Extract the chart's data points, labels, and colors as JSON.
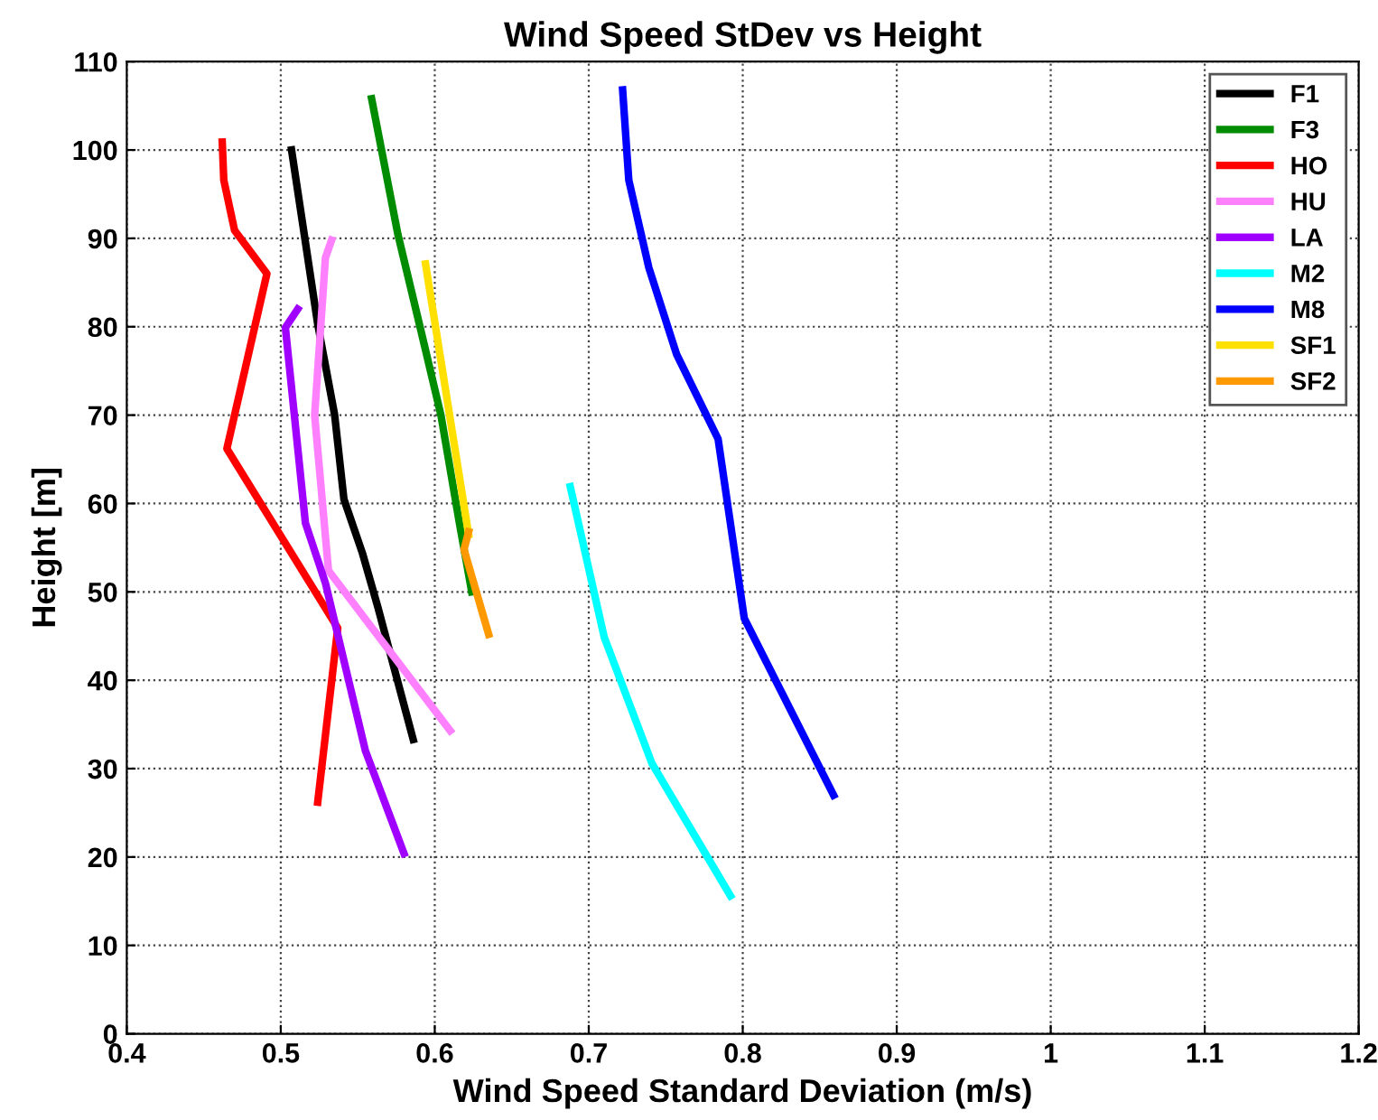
{
  "chart_data": {
    "type": "line",
    "title": "Wind Speed StDev vs Height",
    "xlabel": "Wind Speed Standard Deviation (m/s)",
    "ylabel": "Height [m]",
    "xlim": [
      0.4,
      1.2
    ],
    "xticks": [
      0.4,
      0.5,
      0.6,
      0.7,
      0.8,
      0.9,
      1,
      1.1,
      1.2
    ],
    "ylim": [
      0,
      110
    ],
    "yticks": [
      0,
      10,
      20,
      30,
      40,
      50,
      60,
      70,
      80,
      90,
      100,
      110
    ],
    "grid": true,
    "legend": "top right",
    "line_style": "solid",
    "marker": "none",
    "series": [
      {
        "name": "F1",
        "color": "#000000",
        "x": [
          0.507,
          0.524,
          0.535,
          0.541,
          0.553,
          0.563,
          0.586
        ],
        "values": [
          100,
          80.3,
          70,
          60.5,
          54.4,
          48.3,
          33.3
        ]
      },
      {
        "name": "F3",
        "color": "#008c00",
        "x": [
          0.559,
          0.576,
          0.59,
          0.604,
          0.616,
          0.624
        ],
        "values": [
          105.8,
          90.5,
          80.3,
          70,
          57.8,
          50
        ]
      },
      {
        "name": "HO",
        "color": "#ff0000",
        "x": [
          0.462,
          0.463,
          0.47,
          0.491,
          0.465,
          0.537,
          0.524
        ],
        "values": [
          100.9,
          96.6,
          90.9,
          86,
          66.2,
          45.9,
          26.2
        ]
      },
      {
        "name": "HU",
        "color": "#ff80ff",
        "x": [
          0.533,
          0.529,
          0.522,
          0.531,
          0.61
        ],
        "values": [
          89.8,
          87.8,
          70,
          52.4,
          34.3
        ]
      },
      {
        "name": "LA",
        "color": "#a000ff",
        "x": [
          0.511,
          0.503,
          0.516,
          0.529,
          0.555,
          0.58
        ],
        "values": [
          82,
          79.9,
          57.8,
          51,
          32,
          20.4
        ]
      },
      {
        "name": "M2",
        "color": "#00ffff",
        "x": [
          0.688,
          0.71,
          0.741,
          0.792
        ],
        "values": [
          61.9,
          44.9,
          30.6,
          15.6
        ]
      },
      {
        "name": "M8",
        "color": "#0000ff",
        "x": [
          0.722,
          0.726,
          0.739,
          0.757,
          0.784,
          0.801,
          0.859
        ],
        "values": [
          106.8,
          96.6,
          86.7,
          76.9,
          67.3,
          47,
          27
        ]
      },
      {
        "name": "SF1",
        "color": "#ffe000",
        "x": [
          0.594,
          0.622
        ],
        "values": [
          87.1,
          56.5
        ]
      },
      {
        "name": "SF2",
        "color": "#ff9900",
        "x": [
          0.622,
          0.619,
          0.635
        ],
        "values": [
          56.8,
          54.8,
          45.2
        ]
      }
    ]
  }
}
